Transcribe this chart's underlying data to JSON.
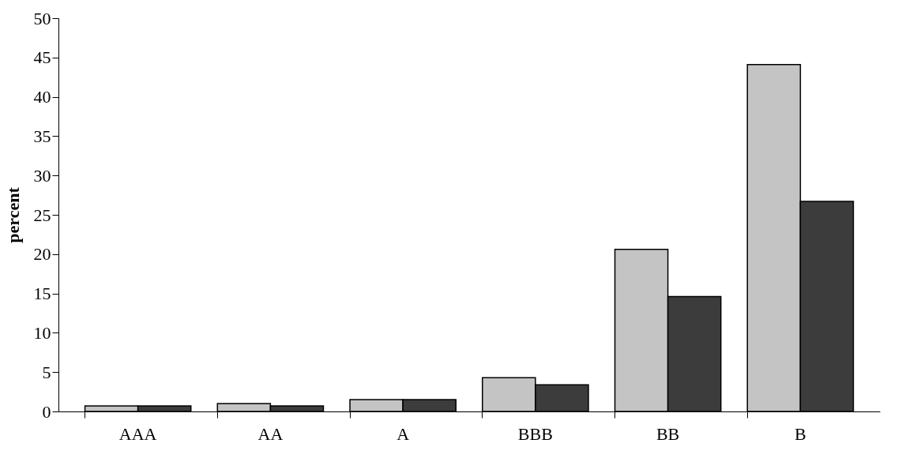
{
  "chart_data": {
    "type": "bar",
    "ylabel": "percent",
    "categories": [
      "AAA",
      "AA",
      "A",
      "BBB",
      "BB",
      "B"
    ],
    "series": [
      {
        "color": "#c4c4c4",
        "values": [
          0.7,
          1.0,
          1.5,
          4.3,
          20.6,
          44.1
        ]
      },
      {
        "color": "#3c3c3c",
        "values": [
          0.7,
          0.7,
          1.5,
          3.4,
          14.6,
          26.7
        ]
      }
    ],
    "ylim": [
      0,
      50
    ],
    "yticks": [
      0,
      5,
      10,
      15,
      20,
      25,
      30,
      35,
      40,
      45,
      50
    ],
    "grid": false,
    "legend": false
  }
}
